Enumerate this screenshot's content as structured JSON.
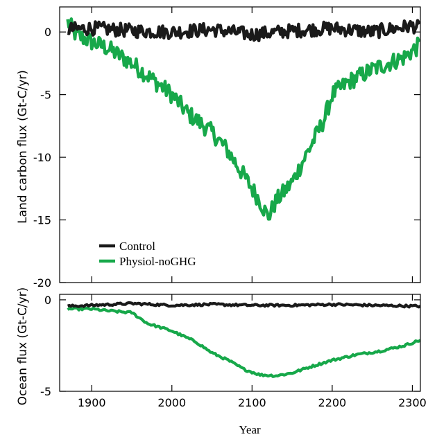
{
  "chart_data": [
    {
      "type": "line",
      "panel": "top",
      "title": "",
      "xlabel": "",
      "ylabel": "Land carbon flux (Gt-C/yr)",
      "xlim": [
        1860,
        2310
      ],
      "ylim": [
        -20,
        2
      ],
      "yticks": [
        0,
        -5,
        -10,
        -15,
        -20
      ],
      "ytick_labels": [
        "0",
        "-5",
        "-10",
        "-15",
        "-20"
      ],
      "xticks": [
        1900,
        2000,
        2100,
        2200,
        2300
      ],
      "grid": false,
      "legend_position": "lower-left",
      "series": [
        {
          "name": "Control",
          "color": "#1a1a1a",
          "style": "noisy band",
          "x": [
            1870,
            1900,
            1950,
            2000,
            2050,
            2100,
            2150,
            2200,
            2250,
            2300,
            2310
          ],
          "y": [
            0.2,
            0.3,
            0.1,
            0.0,
            0.2,
            -0.2,
            0.1,
            0.3,
            0.0,
            0.5,
            0.3
          ]
        },
        {
          "name": "Physiol-noGHG",
          "color": "#17a84a",
          "style": "noisy band",
          "x": [
            1870,
            1880,
            1900,
            1920,
            1950,
            1970,
            2000,
            2020,
            2050,
            2070,
            2080,
            2100,
            2110,
            2120,
            2130,
            2150,
            2170,
            2190,
            2200,
            2220,
            2250,
            2270,
            2290,
            2300,
            2310
          ],
          "y": [
            0.8,
            -0.2,
            -0.8,
            -1.3,
            -2.5,
            -3.5,
            -5.0,
            -6.5,
            -8.0,
            -9.5,
            -10.5,
            -12.5,
            -13.5,
            -14.8,
            -13.5,
            -12.0,
            -9.5,
            -7.0,
            -5.0,
            -4.0,
            -3.0,
            -2.5,
            -2.0,
            -1.5,
            -1.0
          ]
        }
      ]
    },
    {
      "type": "line",
      "panel": "bottom",
      "title": "",
      "xlabel": "Year",
      "ylabel": "Ocean flux (Gt-C/yr)",
      "xlim": [
        1860,
        2310
      ],
      "ylim": [
        -5,
        0.3
      ],
      "yticks": [
        0,
        -5
      ],
      "ytick_labels": [
        "0",
        "-5"
      ],
      "xticks": [
        1900,
        2000,
        2100,
        2200,
        2300
      ],
      "xtick_labels": [
        "1900",
        "2000",
        "2100",
        "2200",
        "2300"
      ],
      "grid": false,
      "series": [
        {
          "name": "Control",
          "color": "#1a1a1a",
          "x": [
            1870,
            1900,
            1950,
            2000,
            2050,
            2100,
            2150,
            2200,
            2250,
            2310
          ],
          "y": [
            -0.35,
            -0.3,
            -0.2,
            -0.3,
            -0.25,
            -0.3,
            -0.3,
            -0.25,
            -0.3,
            -0.35
          ]
        },
        {
          "name": "Physiol-noGHG",
          "color": "#17a84a",
          "x": [
            1870,
            1900,
            1920,
            1950,
            1970,
            2000,
            2030,
            2050,
            2070,
            2090,
            2110,
            2130,
            2150,
            2170,
            2200,
            2230,
            2260,
            2290,
            2310
          ],
          "y": [
            -0.5,
            -0.5,
            -0.6,
            -0.7,
            -1.3,
            -1.7,
            -2.3,
            -2.9,
            -3.3,
            -3.8,
            -4.1,
            -4.15,
            -4.0,
            -3.7,
            -3.3,
            -3.0,
            -2.8,
            -2.5,
            -2.2
          ]
        }
      ]
    }
  ]
}
